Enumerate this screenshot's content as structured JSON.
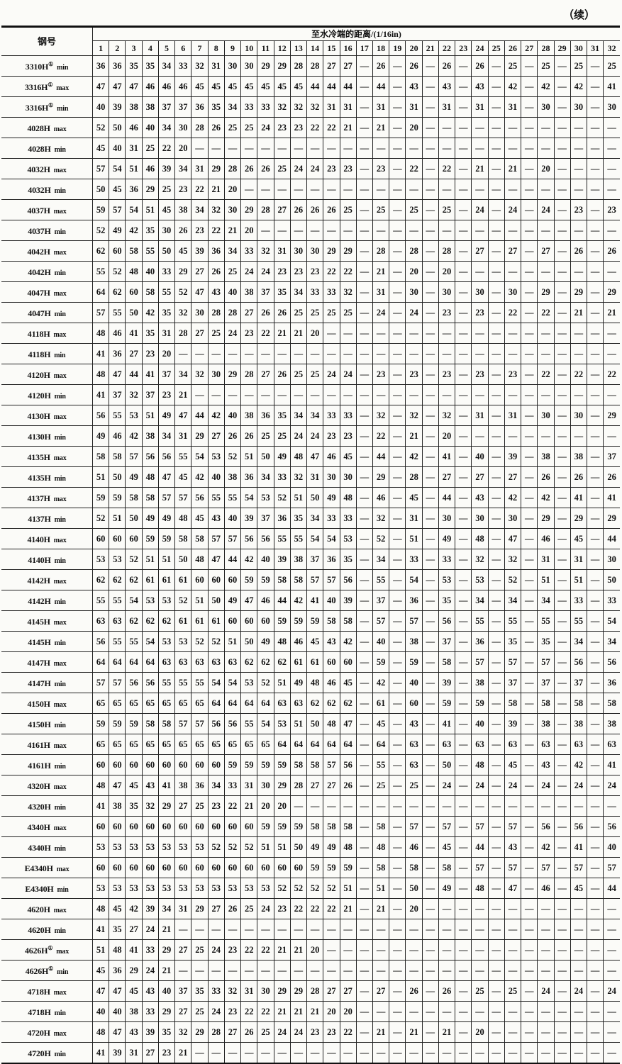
{
  "continued_label": "（续）",
  "header": {
    "grade_label": "钢号",
    "distance_label": "至水冷端的距离/(1/16in)",
    "columns": [
      "1",
      "2",
      "3",
      "4",
      "5",
      "6",
      "7",
      "8",
      "9",
      "10",
      "11",
      "12",
      "13",
      "14",
      "15",
      "16",
      "17",
      "18",
      "19",
      "20",
      "21",
      "22",
      "23",
      "24",
      "25",
      "26",
      "27",
      "28",
      "29",
      "30",
      "31",
      "32"
    ]
  },
  "rows": [
    {
      "grade": "3310H",
      "note": "①",
      "type": "min",
      "values": "36 36 35 35 34 33 32 31 30 30 29 29 28 28 27 27 — 26 — 26 — 26 — 26 — 25 — 25 — 25 — 25"
    },
    {
      "grade": "3316H",
      "note": "①",
      "type": "max",
      "values": "47 47 47 46 46 46 45 45 45 45 45 45 45 44 44 44 — 44 — 43 — 43 — 43 — 42 — 42 — 42 — 41"
    },
    {
      "grade": "3316H",
      "note": "①",
      "type": "min",
      "values": "40 39 38 38 37 37 36 35 34 33 33 32 32 32 31 31 — 31 — 31 — 31 — 31 — 31 — 30 — 30 — 30"
    },
    {
      "grade": "4028H",
      "note": "",
      "type": "max",
      "values": "52 50 46 40 34 30 28 26 25 25 24 23 23 22 22 21 — 21 — 20 — — — — — — — — — — — —"
    },
    {
      "grade": "4028H",
      "note": "",
      "type": "min",
      "values": "45 40 31 25 22 20 — — — — — — — — — — — — — — — — — — — — — — — — — —"
    },
    {
      "grade": "4032H",
      "note": "",
      "type": "max",
      "values": "57 54 51 46 39 34 31 29 28 26 26 25 24 24 23 23 — 23 — 22 — 22 — 21 — 21 — 20 — — — —"
    },
    {
      "grade": "4032H",
      "note": "",
      "type": "min",
      "values": "50 45 36 29 25 23 22 21 20 — — — — — — — — — — — — — — — — — — — — — — —"
    },
    {
      "grade": "4037H",
      "note": "",
      "type": "max",
      "values": "59 57 54 51 45 38 34 32 30 29 28 27 26 26 26 25 — 25 — 25 — 25 — 24 — 24 — 24 — 23 — 23"
    },
    {
      "grade": "4037H",
      "note": "",
      "type": "min",
      "values": "52 49 42 35 30 26 23 22 21 20 — — — — — — — — — — — — — — — — — — — — — —"
    },
    {
      "grade": "4042H",
      "note": "",
      "type": "max",
      "values": "62 60 58 55 50 45 39 36 34 33 32 31 30 30 29 29 — 28 — 28 — 28 — 27 — 27 — 27 — 26 — 26"
    },
    {
      "grade": "4042H",
      "note": "",
      "type": "min",
      "values": "55 52 48 40 33 29 27 26 25 24 24 23 23 23 22 22 — 21 — 20 — 20 — — — — — — — — — —"
    },
    {
      "grade": "4047H",
      "note": "",
      "type": "max",
      "values": "64 62 60 58 55 52 47 43 40 38 37 35 34 33 33 32 — 31 — 30 — 30 — 30 — 30 — 29 — 29 — 29"
    },
    {
      "grade": "4047H",
      "note": "",
      "type": "min",
      "values": "57 55 50 42 35 32 30 28 28 27 26 26 25 25 25 25 — 24 — 24 — 23 — 23 — 22 — 22 — 21 — 21"
    },
    {
      "grade": "4118H",
      "note": "",
      "type": "max",
      "values": "48 46 41 35 31 28 27 25 24 23 22 21 21 20 — — — — — — — — — — — — — — — — — —"
    },
    {
      "grade": "4118H",
      "note": "",
      "type": "min",
      "values": "41 36 27 23 20 — — — — — — — — — — — — — — — — — — — — — — — — — — —"
    },
    {
      "grade": "4120H",
      "note": "",
      "type": "max",
      "values": "48 47 44 41 37 34 32 30 29 28 27 26 25 25 24 24 — 23 — 23 — 23 — 23 — 23 — 22 — 22 — 22"
    },
    {
      "grade": "4120H",
      "note": "",
      "type": "min",
      "values": "41 37 32 37 23 21 — — — — — — — — — — — — — — — — — — — — — — — — — —"
    },
    {
      "grade": "4130H",
      "note": "",
      "type": "max",
      "values": "56 55 53 51 49 47 44 42 40 38 36 35 34 34 33 33 — 32 — 32 — 32 — 31 — 31 — 30 — 30 — 29"
    },
    {
      "grade": "4130H",
      "note": "",
      "type": "min",
      "values": "49 46 42 38 34 31 29 27 26 26 25 25 24 24 23 23 — 22 — 21 — 20 — — — — — — — — — —"
    },
    {
      "grade": "4135H",
      "note": "",
      "type": "max",
      "values": "58 58 57 56 56 55 54 53 52 51 50 49 48 47 46 45 — 44 — 42 — 41 — 40 — 39 — 38 — 38 — 37"
    },
    {
      "grade": "4135H",
      "note": "",
      "type": "min",
      "values": "51 50 49 48 47 45 42 40 38 36 34 33 32 31 30 30 — 29 — 28 — 27 — 27 — 27 — 26 — 26 — 26"
    },
    {
      "grade": "4137H",
      "note": "",
      "type": "max",
      "values": "59 59 58 58 57 57 56 55 55 54 53 52 51 50 49 48 — 46 — 45 — 44 — 43 — 42 — 42 — 41 — 41"
    },
    {
      "grade": "4137H",
      "note": "",
      "type": "min",
      "values": "52 51 50 49 49 48 45 43 40 39 37 36 35 34 33 33 — 32 — 31 — 30 — 30 — 30 — 29 — 29 — 29"
    },
    {
      "grade": "4140H",
      "note": "",
      "type": "max",
      "values": "60 60 60 59 59 58 58 57 57 56 56 55 55 54 54 53 — 52 — 51 — 49 — 48 — 47 — 46 — 45 — 44"
    },
    {
      "grade": "4140H",
      "note": "",
      "type": "min",
      "values": "53 53 52 51 51 50 48 47 44 42 40 39 38 37 36 35 — 34 — 33 — 33 — 32 — 32 — 31 — 31 — 30"
    },
    {
      "grade": "4142H",
      "note": "",
      "type": "max",
      "values": "62 62 62 61 61 61 60 60 60 59 59 58 58 57 57 56 — 55 — 54 — 53 — 53 — 52 — 51 — 51 — 50"
    },
    {
      "grade": "4142H",
      "note": "",
      "type": "min",
      "values": "55 55 54 53 53 52 51 50 49 47 46 44 42 41 40 39 — 37 — 36 — 35 — 34 — 34 — 34 — 33 — 33"
    },
    {
      "grade": "4145H",
      "note": "",
      "type": "max",
      "values": "63 63 62 62 62 61 61 61 60 60 60 59 59 59 58 58 — 57 — 57 — 56 — 55 — 55 — 55 — 55 — 54"
    },
    {
      "grade": "4145H",
      "note": "",
      "type": "min",
      "values": "56 55 55 54 53 53 52 52 51 50 49 48 46 45 43 42 — 40 — 38 — 37 — 36 — 35 — 35 — 34 — 34"
    },
    {
      "grade": "4147H",
      "note": "",
      "type": "max",
      "values": "64 64 64 64 63 63 63 63 63 62 62 62 61 61 60 60 — 59 — 59 — 58 — 57 — 57 — 57 — 56 — 56"
    },
    {
      "grade": "4147H",
      "note": "",
      "type": "min",
      "values": "57 57 56 56 55 55 55 54 54 53 52 51 49 48 46 45 — 42 — 40 — 39 — 38 — 37 — 37 — 37 — 36"
    },
    {
      "grade": "4150H",
      "note": "",
      "type": "max",
      "values": "65 65 65 65 65 65 65 64 64 64 64 63 63 62 62 62 — 61 — 60 — 59 — 59 — 58 — 58 — 58 — 58"
    },
    {
      "grade": "4150H",
      "note": "",
      "type": "min",
      "values": "59 59 59 58 58 57 57 56 56 55 54 53 51 50 48 47 — 45 — 43 — 41 — 40 — 39 — 38 — 38 — 38"
    },
    {
      "grade": "4161H",
      "note": "",
      "type": "max",
      "values": "65 65 65 65 65 65 65 65 65 65 65 64 64 64 64 64 — 64 — 63 — 63 — 63 — 63 — 63 — 63 — 63"
    },
    {
      "grade": "4161H",
      "note": "",
      "type": "min",
      "values": "60 60 60 60 60 60 60 60 59 59 59 59 58 58 57 56 — 55 — 63 — 50 — 48 — 45 — 43 — 42 — 41"
    },
    {
      "grade": "4320H",
      "note": "",
      "type": "max",
      "values": "48 47 45 43 41 38 36 34 33 31 30 29 28 27 27 26 — 25 — 25 — 24 — 24 — 24 — 24 — 24 — 24"
    },
    {
      "grade": "4320H",
      "note": "",
      "type": "min",
      "values": "41 38 35 32 29 27 25 23 22 21 20 20 — — — — — — — — — — — — — — — — — — — —"
    },
    {
      "grade": "4340H",
      "note": "",
      "type": "max",
      "values": "60 60 60 60 60 60 60 60 60 60 59 59 59 58 58 58 — 58 — 57 — 57 — 57 — 57 — 56 — 56 — 56"
    },
    {
      "grade": "4340H",
      "note": "",
      "type": "min",
      "values": "53 53 53 53 53 53 53 52 52 52 51 51 50 49 49 48 — 48 — 46 — 45 — 44 — 43 — 42 — 41 — 40"
    },
    {
      "grade": "E4340H",
      "note": "",
      "type": "max",
      "values": "60 60 60 60 60 60 60 60 60 60 60 60 60 59 59 59 — 58 — 58 — 58 — 57 — 57 — 57 — 57 — 57"
    },
    {
      "grade": "E4340H",
      "note": "",
      "type": "min",
      "values": "53 53 53 53 53 53 53 53 53 53 53 52 52 52 52 51 — 51 — 50 — 49 — 48 — 47 — 46 — 45 — 44"
    },
    {
      "grade": "4620H",
      "note": "",
      "type": "max",
      "values": "48 45 42 39 34 31 29 27 26 25 24 23 22 22 22 21 — 21 — 20 — — — — — — — — — — — —"
    },
    {
      "grade": "4620H",
      "note": "",
      "type": "min",
      "values": "41 35 27 24 21 — — — — — — — — — — — — — — — — — — — — — — — — — — —"
    },
    {
      "grade": "4626H",
      "note": "①",
      "type": "max",
      "values": "51 48 41 33 29 27 25 24 23 22 22 21 21 20 — — — — — — — — — — — — — — — — — —"
    },
    {
      "grade": "4626H",
      "note": "①",
      "type": "min",
      "values": "45 36 29 24 21 — — — — — — — — — — — — — — — — — — — — — — — — — — —"
    },
    {
      "grade": "4718H",
      "note": "",
      "type": "max",
      "values": "47 47 45 43 40 37 35 33 32 31 30 29 29 28 27 27 — 27 — 26 — 26 — 25 — 25 — 24 — 24 — 24"
    },
    {
      "grade": "4718H",
      "note": "",
      "type": "min",
      "values": "40 40 38 33 29 27 25 24 23 22 22 21 21 21 20 20 — — — — — — — — — — — — — — — —"
    },
    {
      "grade": "4720H",
      "note": "",
      "type": "max",
      "values": "48 47 43 39 35 32 29 28 27 26 25 24 24 23 23 22 — 21 — 21 — 21 — 20 — — — — — — — —"
    },
    {
      "grade": "4720H",
      "note": "",
      "type": "min",
      "values": "41 39 31 27 23 21 — — — — — — — — — — — — — — — — — — — — — — — — — —"
    }
  ]
}
